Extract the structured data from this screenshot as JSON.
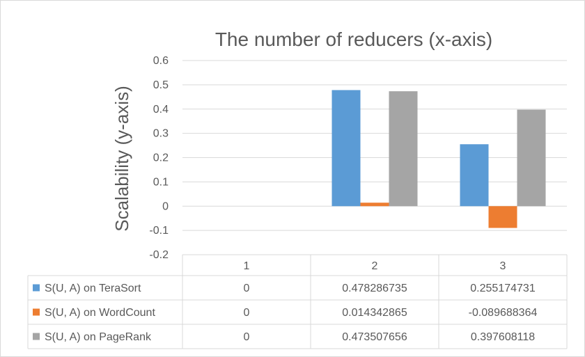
{
  "chart_data": {
    "type": "bar",
    "title": "The number of reducers (x-axis)",
    "xlabel": "",
    "ylabel": "Scalability (y-axis)",
    "categories": [
      "1",
      "2",
      "3"
    ],
    "ylim": [
      -0.2,
      0.6
    ],
    "yticks": [
      "0.6",
      "0.5",
      "0.4",
      "0.3",
      "0.2",
      "0.1",
      "0",
      "-0.1",
      "-0.2"
    ],
    "grid": true,
    "legend": "data-table",
    "series": [
      {
        "name": "S(U, A) on TeraSort",
        "color": "#5b9bd5",
        "values": [
          0,
          0.478286735,
          0.255174731
        ],
        "labels": [
          "0",
          "0.478286735",
          "0.255174731"
        ]
      },
      {
        "name": "S(U, A) on WordCount",
        "color": "#ed7d31",
        "values": [
          0,
          0.014342865,
          -0.089688364
        ],
        "labels": [
          "0",
          "0.014342865",
          "-0.089688364"
        ]
      },
      {
        "name": "S(U, A) on PageRank",
        "color": "#a5a5a5",
        "values": [
          0,
          0.473507656,
          0.397608118
        ],
        "labels": [
          "0",
          "0.473507656",
          "0.397608118"
        ]
      }
    ]
  }
}
